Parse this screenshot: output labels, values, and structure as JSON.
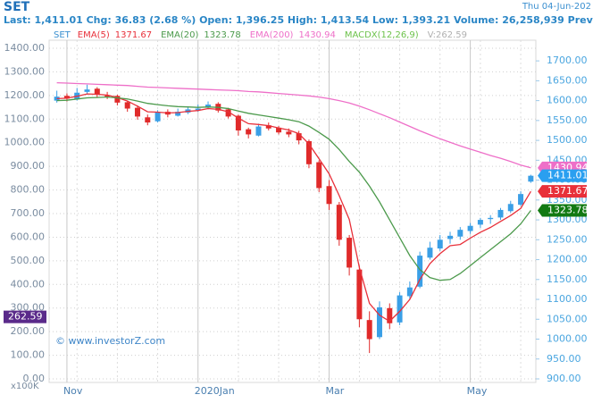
{
  "chart_data": {
    "type": "candlestick",
    "title": "SET",
    "date": "Thu 04-Jun-202",
    "summary": "Last: 1,411.01 Chg: 36.83 (2.68 %) Open: 1,396.25 High: 1,413.54 Low: 1,393.21 Volume: 26,258,939 Prev Clos",
    "indicator": "MACDX(12,26,9)",
    "volume_label": "V:262.59",
    "watermark": "© www.investorZ.com",
    "y2_unit": "x100K",
    "categories": [
      null,
      "Nov",
      null,
      null,
      null,
      null,
      null,
      null,
      null,
      null,
      null,
      null,
      null,
      null,
      "2020Jan",
      null,
      null,
      null,
      null,
      null,
      null,
      null,
      null,
      null,
      null,
      null,
      null,
      "Mar",
      null,
      null,
      null,
      null,
      null,
      null,
      null,
      null,
      null,
      null,
      null,
      null,
      null,
      "May",
      null,
      null,
      null,
      null,
      null,
      null
    ],
    "open": [
      1600,
      1612,
      1603,
      1622,
      1630,
      1613,
      1612,
      1596,
      1582,
      1558,
      1548,
      1572,
      1562,
      1570,
      1576,
      1582,
      1592,
      1578,
      1562,
      1528,
      1512,
      1538,
      1532,
      1522,
      1518,
      1498,
      1445,
      1385,
      1338,
      1255,
      1175,
      1048,
      1005,
      1078,
      1042,
      1108,
      1132,
      1205,
      1228,
      1252,
      1258,
      1272,
      1288,
      1302,
      1306,
      1322,
      1338,
      1396.25
    ],
    "high": [
      1625,
      1618,
      1632,
      1640,
      1634,
      1622,
      1615,
      1600,
      1588,
      1565,
      1576,
      1578,
      1580,
      1585,
      1590,
      1598,
      1596,
      1582,
      1565,
      1532,
      1542,
      1545,
      1536,
      1530,
      1524,
      1502,
      1450,
      1400,
      1345,
      1262,
      1185,
      1070,
      1095,
      1090,
      1118,
      1145,
      1220,
      1245,
      1262,
      1270,
      1282,
      1292,
      1305,
      1312,
      1330,
      1348,
      1372,
      1413.54
    ],
    "low": [
      1595,
      1598,
      1600,
      1615,
      1608,
      1604,
      1588,
      1572,
      1552,
      1538,
      1545,
      1558,
      1560,
      1566,
      1572,
      1578,
      1570,
      1555,
      1512,
      1505,
      1510,
      1525,
      1515,
      1508,
      1490,
      1430,
      1370,
      1325,
      1235,
      1160,
      1030,
      965,
      1000,
      1025,
      1035,
      1100,
      1128,
      1200,
      1222,
      1240,
      1250,
      1265,
      1280,
      1290,
      1300,
      1318,
      1335,
      1393.21
    ],
    "close": [
      1610,
      1605,
      1620,
      1628,
      1615,
      1610,
      1595,
      1580,
      1560,
      1545,
      1570,
      1565,
      1572,
      1578,
      1580,
      1590,
      1575,
      1560,
      1525,
      1515,
      1535,
      1530,
      1520,
      1515,
      1500,
      1440,
      1380,
      1340,
      1250,
      1180,
      1050,
      1000,
      1080,
      1040,
      1110,
      1130,
      1210,
      1230,
      1250,
      1260,
      1275,
      1285,
      1300,
      1305,
      1325,
      1340,
      1365,
      1411.01
    ],
    "color_up": "#3a9fe6",
    "color_down": "#e02a2a",
    "series": [
      {
        "name": "EMA(5)",
        "color": "#e8303a",
        "values": [
          1605,
          1606,
          1611,
          1617,
          1616,
          1614,
          1608,
          1599,
          1586,
          1572,
          1571,
          1569,
          1570,
          1573,
          1575,
          1580,
          1578,
          1572,
          1556,
          1542,
          1540,
          1537,
          1531,
          1526,
          1517,
          1491,
          1454,
          1416,
          1361,
          1301,
          1180,
          1090,
          1060,
          1045,
          1070,
          1100,
          1150,
          1190,
          1215,
          1235,
          1238,
          1254,
          1269,
          1281,
          1296,
          1311,
          1329,
          1371.67
        ]
      },
      {
        "name": "EMA(20)",
        "color": "#4c9a4c",
        "values": [
          1600,
          1601,
          1604,
          1607,
          1608,
          1609,
          1607,
          1604,
          1599,
          1593,
          1590,
          1587,
          1585,
          1584,
          1583,
          1584,
          1583,
          1580,
          1574,
          1568,
          1564,
          1560,
          1556,
          1552,
          1547,
          1536,
          1520,
          1503,
          1477,
          1447,
          1420,
          1385,
          1345,
          1300,
          1255,
          1210,
          1175,
          1155,
          1148,
          1150,
          1165,
          1185,
          1205,
          1225,
          1245,
          1265,
          1290,
          1323.78
        ]
      },
      {
        "name": "EMA(200)",
        "color": "#ee6fc8",
        "values": [
          1645,
          1644,
          1643,
          1642,
          1641,
          1640,
          1639,
          1638,
          1636,
          1634,
          1633,
          1632,
          1631,
          1630,
          1629,
          1628,
          1627,
          1626,
          1625,
          1623,
          1622,
          1620,
          1618,
          1616,
          1614,
          1612,
          1609,
          1605,
          1600,
          1594,
          1586,
          1577,
          1567,
          1557,
          1546,
          1535,
          1524,
          1514,
          1504,
          1495,
          1486,
          1478,
          1470,
          1462,
          1455,
          1447,
          1438,
          1430.94
        ]
      }
    ],
    "last_color": "#2a9ff0",
    "volume": 262.59,
    "volume_color": "#5a2a8a",
    "ylim": [
      891,
      1752
    ],
    "yticks": [
      {
        "value": 900,
        "label": "900.00"
      },
      {
        "value": 950,
        "label": "950.00"
      },
      {
        "value": 1000,
        "label": "1000.00"
      },
      {
        "value": 1050,
        "label": "1050.00"
      },
      {
        "value": 1100,
        "label": "1100.00"
      },
      {
        "value": 1150,
        "label": "1150.00"
      },
      {
        "value": 1200,
        "label": "1200.00"
      },
      {
        "value": 1250,
        "label": "1250.00"
      },
      {
        "value": 1300,
        "label": "1300.00"
      },
      {
        "value": 1350,
        "label": "1350.00"
      },
      {
        "value": 1400,
        "label": "1400.00"
      },
      {
        "value": 1450,
        "label": "1450.00"
      },
      {
        "value": 1500,
        "label": "1500.00"
      },
      {
        "value": 1550,
        "label": "1550.00"
      },
      {
        "value": 1600,
        "label": "1600.00"
      },
      {
        "value": 1650,
        "label": "1650.00"
      },
      {
        "value": 1700,
        "label": "1700.00"
      }
    ],
    "y2lim": [
      -15,
      1434
    ],
    "y2ticks": [
      {
        "value": 0,
        "label": "0.00"
      },
      {
        "value": 100,
        "label": "100.00"
      },
      {
        "value": 200,
        "label": "200.00"
      },
      {
        "value": 300,
        "label": "300.00"
      },
      {
        "value": 400,
        "label": "400.00"
      },
      {
        "value": 500,
        "label": "500.00"
      },
      {
        "value": 600,
        "label": "600.00"
      },
      {
        "value": 700,
        "label": "700.00"
      },
      {
        "value": 800,
        "label": "800.00"
      },
      {
        "value": 900,
        "label": "900.00"
      },
      {
        "value": 1000,
        "label": "1000.00"
      },
      {
        "value": 1100,
        "label": "1100.00"
      },
      {
        "value": 1200,
        "label": "1200.00"
      },
      {
        "value": 1300,
        "label": "1300.00"
      },
      {
        "value": 1400,
        "label": "1400.00"
      }
    ],
    "grid": true
  }
}
